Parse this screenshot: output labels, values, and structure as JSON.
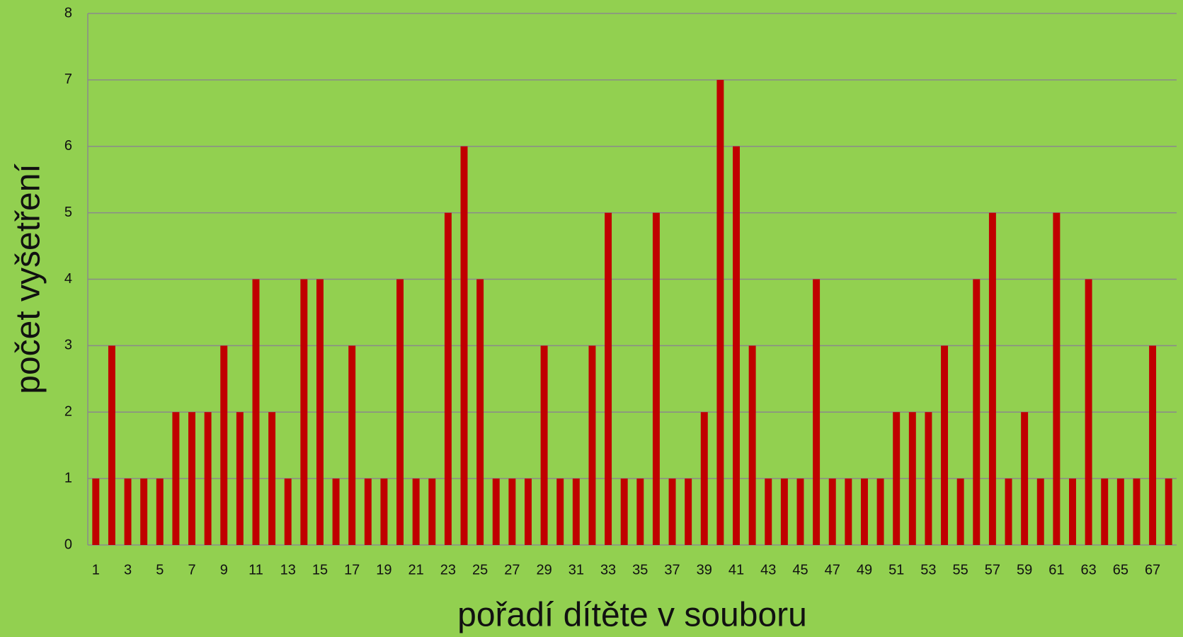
{
  "chart_data": {
    "type": "bar",
    "x_label": "pořadí dítěte v souboru",
    "y_label": "počet vyšetření",
    "categories": [
      1,
      null,
      3,
      null,
      5,
      null,
      7,
      null,
      9,
      null,
      11,
      null,
      13,
      null,
      15,
      null,
      17,
      null,
      19,
      null,
      21,
      null,
      23,
      null,
      25,
      null,
      27,
      null,
      29,
      null,
      31,
      null,
      33,
      null,
      35,
      null,
      37,
      null,
      39,
      null,
      41,
      null,
      43,
      null,
      45,
      null,
      47,
      null,
      49,
      null,
      51,
      null,
      53,
      null,
      55,
      null,
      57,
      null,
      59,
      null,
      61,
      null,
      63,
      null,
      65,
      null,
      67,
      null
    ],
    "values": [
      1,
      3,
      1,
      1,
      1,
      2,
      2,
      2,
      3,
      2,
      4,
      2,
      1,
      4,
      4,
      1,
      3,
      1,
      1,
      4,
      1,
      1,
      5,
      6,
      4,
      1,
      1,
      1,
      3,
      1,
      1,
      3,
      5,
      1,
      1,
      5,
      1,
      1,
      2,
      7,
      6,
      3,
      1,
      1,
      1,
      4,
      1,
      1,
      1,
      1,
      2,
      2,
      2,
      3,
      1,
      4,
      5,
      1,
      2,
      1,
      5,
      1,
      4,
      1,
      1,
      1,
      3,
      1
    ],
    "color": "#c00000",
    "ylim": [
      0,
      8
    ],
    "yticks": [
      0,
      1,
      2,
      3,
      4,
      5,
      6,
      7,
      8
    ],
    "grid": true
  }
}
